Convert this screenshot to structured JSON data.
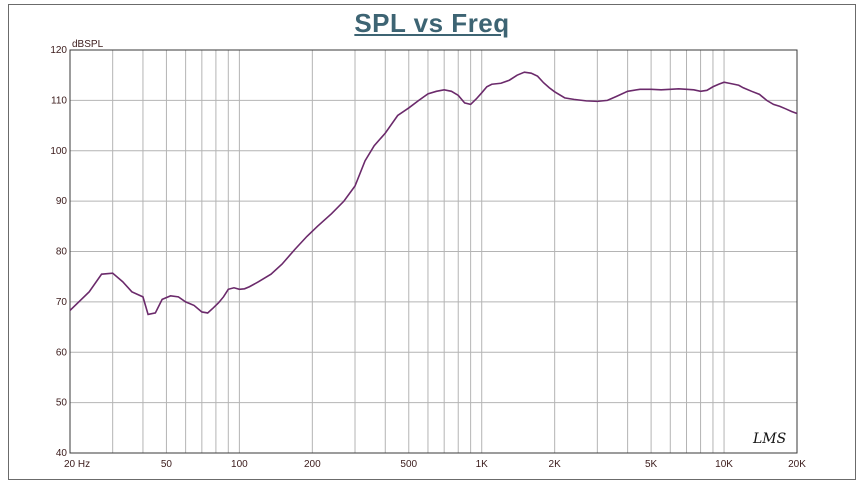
{
  "chart_data": {
    "type": "line",
    "title": "SPL vs Freq",
    "ylabel": "dBSPL",
    "xscale": "log",
    "xlim": [
      20,
      20000
    ],
    "ylim": [
      40,
      120
    ],
    "grid": true,
    "y_ticks": [
      40,
      50,
      60,
      70,
      80,
      90,
      100,
      110,
      120
    ],
    "x_tick_labels": [
      {
        "v": 20,
        "label": "20  Hz"
      },
      {
        "v": 50,
        "label": "50"
      },
      {
        "v": 100,
        "label": "100"
      },
      {
        "v": 200,
        "label": "200"
      },
      {
        "v": 500,
        "label": "500"
      },
      {
        "v": 1000,
        "label": "1K"
      },
      {
        "v": 2000,
        "label": "2K"
      },
      {
        "v": 5000,
        "label": "5K"
      },
      {
        "v": 10000,
        "label": "10K"
      },
      {
        "v": 20000,
        "label": "20K"
      }
    ],
    "series": [
      {
        "color": "#6b2a6b",
        "x": [
          20,
          24,
          27,
          30,
          33,
          36,
          40,
          42,
          45,
          48,
          52,
          56,
          60,
          65,
          70,
          74,
          78,
          82,
          86,
          90,
          95,
          100,
          105,
          110,
          120,
          135,
          150,
          170,
          190,
          210,
          240,
          270,
          300,
          330,
          360,
          400,
          450,
          500,
          550,
          600,
          650,
          700,
          750,
          800,
          850,
          900,
          950,
          1000,
          1050,
          1100,
          1200,
          1300,
          1400,
          1500,
          1600,
          1700,
          1800,
          1900,
          2000,
          2200,
          2400,
          2700,
          3000,
          3300,
          3600,
          4000,
          4500,
          5000,
          5500,
          6000,
          6500,
          7000,
          7500,
          8000,
          8500,
          9000,
          9500,
          10000,
          10500,
          11000,
          11500,
          12000,
          13000,
          14000,
          15000,
          16000,
          17000,
          18000,
          19000,
          20000
        ],
        "y": [
          68.3,
          72,
          75.5,
          75.7,
          74,
          72,
          71,
          67.5,
          67.8,
          70.5,
          71.2,
          71,
          70,
          69.3,
          68,
          67.8,
          68.8,
          69.8,
          71,
          72.5,
          72.8,
          72.5,
          72.6,
          73,
          74,
          75.5,
          77.5,
          80.5,
          83,
          85,
          87.5,
          90,
          93,
          98,
          101,
          103.5,
          107,
          108.5,
          110,
          111.3,
          111.8,
          112.1,
          111.8,
          111,
          109.5,
          109.2,
          110.3,
          111.5,
          112.7,
          113.2,
          113.4,
          114,
          115,
          115.6,
          115.4,
          114.8,
          113.5,
          112.5,
          111.7,
          110.5,
          110.2,
          109.9,
          109.8,
          110,
          110.8,
          111.8,
          112.2,
          112.2,
          112.1,
          112.2,
          112.3,
          112.2,
          112.1,
          111.8,
          112,
          112.7,
          113.2,
          113.6,
          113.4,
          113.2,
          113,
          112.5,
          111.8,
          111.2,
          110,
          109.2,
          108.8,
          108.3,
          107.8,
          107.4
        ]
      }
    ]
  },
  "logo_text": "LMS"
}
